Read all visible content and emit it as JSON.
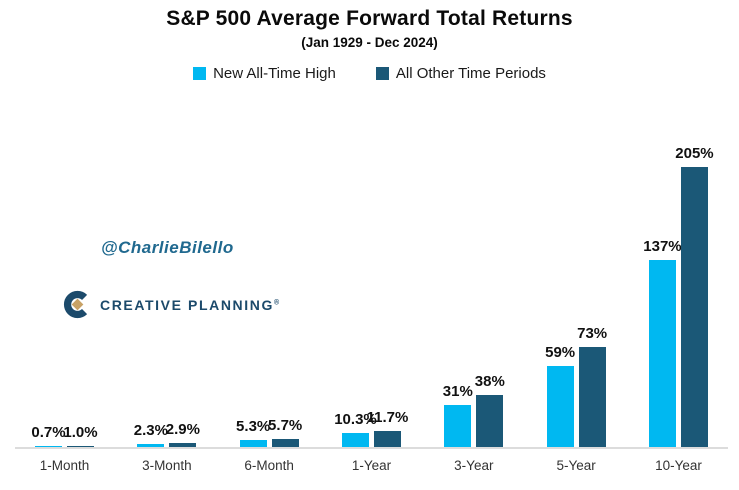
{
  "title": "S&P 500 Average Forward Total Returns",
  "subtitle": "(Jan 1929 - Dec 2024)",
  "legend": {
    "items": [
      {
        "label": "New All-Time High",
        "color": "#00B8F1"
      },
      {
        "label": "All Other Time Periods",
        "color": "#1B5877"
      }
    ]
  },
  "watermark": {
    "text": "@CharlieBilello",
    "color": "#20698F"
  },
  "logo": {
    "text": "CREATIVE PLANNING",
    "trademark": "®",
    "navy": "#1C4A6B",
    "gold": "#C8A266"
  },
  "chart_data": {
    "type": "bar",
    "title": "S&P 500 Average Forward Total Returns",
    "subtitle": "(Jan 1929 - Dec 2024)",
    "categories": [
      "1-Month",
      "3-Month",
      "6-Month",
      "1-Year",
      "3-Year",
      "5-Year",
      "10-Year"
    ],
    "series": [
      {
        "name": "New All-Time High",
        "color": "#00B8F1",
        "values": [
          0.7,
          2.3,
          5.3,
          10.3,
          31,
          59,
          137
        ],
        "labels": [
          "0.7%",
          "2.3%",
          "5.3%",
          "10.3%",
          "31%",
          "59%",
          "137%"
        ]
      },
      {
        "name": "All Other Time Periods",
        "color": "#1B5877",
        "values": [
          1.0,
          2.9,
          5.7,
          11.7,
          38,
          73,
          205
        ],
        "labels": [
          "1.0%",
          "2.9%",
          "5.7%",
          "11.7%",
          "38%",
          "73%",
          "205%"
        ]
      }
    ],
    "unit": "%",
    "ylim": [
      0,
      205
    ],
    "grid": false,
    "y_axis_shown": false,
    "legend_position": "top",
    "axis_line_color": "#DCDCDC"
  }
}
